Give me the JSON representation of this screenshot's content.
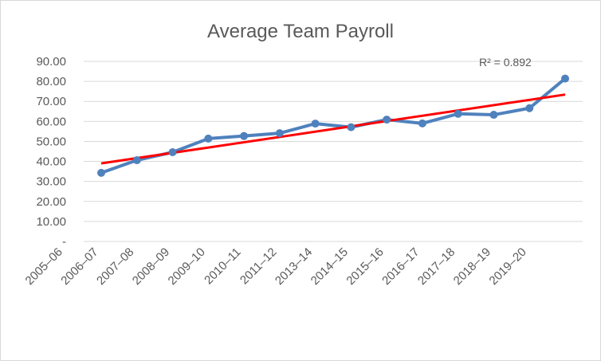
{
  "chart_data": {
    "type": "line",
    "title": "Average Team Payroll",
    "xlabel": "",
    "ylabel": "",
    "categories": [
      "2005–06",
      "2006–07",
      "2007–08",
      "2008–09",
      "2009–10",
      "2010–11",
      "2011–12",
      "2013–14",
      "2014–15",
      "2015–16",
      "2016–17",
      "2017–18",
      "2018–19",
      "2019–20"
    ],
    "series": [
      {
        "values": [
          34.3,
          40.6,
          44.6,
          51.4,
          52.7,
          54.1,
          58.9,
          57.1,
          60.9,
          59.0,
          63.8,
          63.3,
          66.6,
          81.4
        ],
        "color": "#4f81bd"
      }
    ],
    "trendline": {
      "type": "linear",
      "color": "#ff0000",
      "start": 39.0,
      "end": 73.4,
      "r2_label": "R² = 0.892"
    },
    "y_ticks": [
      "-",
      "10.00",
      "20.00",
      "30.00",
      "40.00",
      "50.00",
      "60.00",
      "70.00",
      "80.00",
      "90.00"
    ],
    "ylim": [
      0,
      90
    ],
    "grid": true,
    "legend": "none"
  }
}
